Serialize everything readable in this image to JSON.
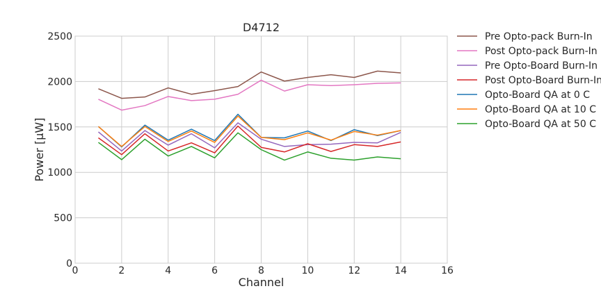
{
  "chart_data": {
    "type": "line",
    "title": "D4712",
    "xlabel": "Channel",
    "ylabel": "Power [μW]",
    "xlim": [
      0,
      16
    ],
    "ylim": [
      0,
      2500
    ],
    "xticks": [
      0,
      2,
      4,
      6,
      8,
      10,
      12,
      14,
      16
    ],
    "yticks": [
      0,
      500,
      1000,
      1500,
      2000,
      2500
    ],
    "grid": true,
    "legend_position": "outside-right",
    "x": [
      1,
      2,
      3,
      4,
      5,
      6,
      7,
      8,
      9,
      10,
      11,
      12,
      13,
      14
    ],
    "series": [
      {
        "name": "Pre Opto-pack Burn-In",
        "color": "#8c564b",
        "values": [
          1920,
          1815,
          1830,
          1930,
          1860,
          1900,
          1945,
          2105,
          2005,
          2045,
          2075,
          2045,
          2115,
          2095
        ]
      },
      {
        "name": "Post Opto-pack Burn-In",
        "color": "#e377c2",
        "values": [
          1805,
          1685,
          1735,
          1835,
          1790,
          1805,
          1860,
          2015,
          1895,
          1965,
          1955,
          1965,
          1980,
          1985
        ]
      },
      {
        "name": "Pre Opto-Board Burn-In",
        "color": "#9467bd",
        "values": [
          1445,
          1235,
          1460,
          1300,
          1425,
          1270,
          1545,
          1365,
          1285,
          1305,
          1310,
          1330,
          1325,
          1440
        ]
      },
      {
        "name": "Post Opto-Board Burn-In",
        "color": "#d62728",
        "values": [
          1380,
          1195,
          1425,
          1235,
          1325,
          1215,
          1510,
          1275,
          1225,
          1315,
          1230,
          1305,
          1285,
          1335
        ]
      },
      {
        "name": "Opto-Board QA at 0 C",
        "color": "#1f77b4",
        "values": [
          1505,
          1280,
          1520,
          1355,
          1475,
          1350,
          1640,
          1385,
          1380,
          1455,
          1350,
          1470,
          1405,
          1460
        ]
      },
      {
        "name": "Opto-Board QA at 10 C",
        "color": "#ff7f0e",
        "values": [
          1505,
          1285,
          1505,
          1340,
          1455,
          1330,
          1620,
          1385,
          1360,
          1435,
          1355,
          1450,
          1410,
          1460
        ]
      },
      {
        "name": "Opto-Board QA at 50 C",
        "color": "#2ca02c",
        "values": [
          1330,
          1140,
          1365,
          1180,
          1285,
          1160,
          1435,
          1250,
          1135,
          1225,
          1155,
          1135,
          1170,
          1150
        ]
      }
    ]
  }
}
